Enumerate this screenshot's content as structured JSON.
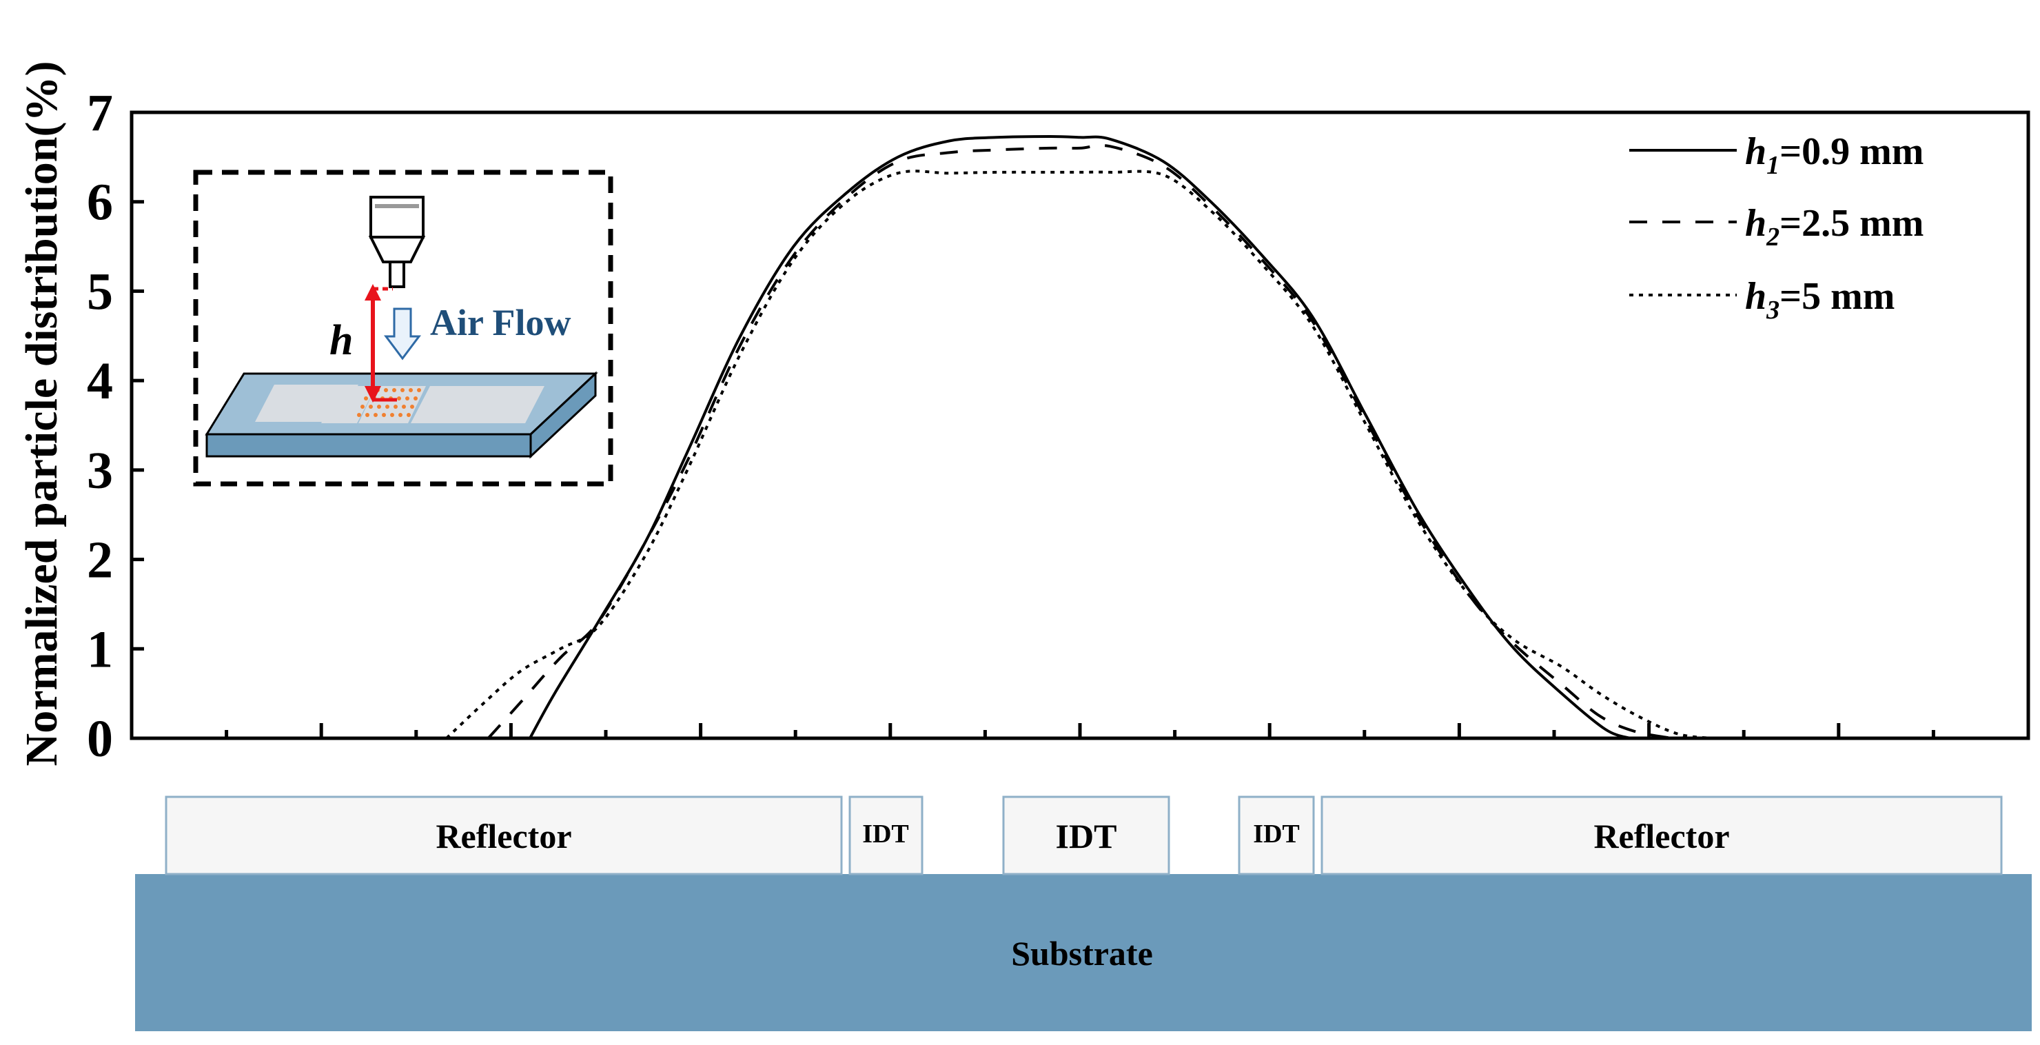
{
  "chart_data": {
    "type": "line",
    "title": "",
    "xlabel": "",
    "ylabel": "Normalized particle distribution(%)",
    "ylim": [
      0,
      7
    ],
    "yticks": [
      "0",
      "1",
      "2",
      "3",
      "4",
      "5",
      "6",
      "7"
    ],
    "xlim": [
      0,
      100
    ],
    "x_tick_labels_shown": false,
    "grid": false,
    "legend_position": "top-right",
    "series": [
      {
        "name_prefix": "h",
        "name_sub": "1",
        "name_suffix": "=0.9 mm",
        "line_style": "solid",
        "x": [
          21.0,
          22.3,
          24.6,
          27.1,
          29.3,
          32.1,
          34.9,
          37.7,
          40.4,
          43.1,
          45.6,
          48.4,
          50.0,
          51.6,
          54.4,
          56.9,
          59.6,
          62.3,
          65.1,
          67.9,
          70.7,
          72.9,
          75.4,
          77.7,
          79.0
        ],
        "y": [
          0.0,
          0.5,
          1.3,
          2.2,
          3.2,
          4.5,
          5.5,
          6.1,
          6.5,
          6.68,
          6.72,
          6.73,
          6.72,
          6.7,
          6.45,
          6.0,
          5.4,
          4.7,
          3.6,
          2.5,
          1.6,
          1.0,
          0.5,
          0.1,
          0.0
        ]
      },
      {
        "name_prefix": "h",
        "name_sub": "2",
        "name_suffix": "=2.5 mm",
        "line_style": "dashed",
        "x": [
          18.8,
          20.5,
          22.6,
          24.6,
          27.1,
          29.3,
          32.1,
          34.9,
          37.7,
          40.4,
          43.1,
          45.6,
          48.4,
          50.0,
          51.6,
          54.4,
          56.9,
          59.6,
          62.3,
          65.1,
          67.9,
          70.7,
          72.9,
          75.4,
          77.4,
          79.2,
          81.2
        ],
        "y": [
          0.0,
          0.4,
          0.9,
          1.3,
          2.2,
          3.1,
          4.4,
          5.4,
          6.05,
          6.45,
          6.55,
          6.58,
          6.6,
          6.6,
          6.62,
          6.4,
          5.95,
          5.35,
          4.65,
          3.55,
          2.45,
          1.55,
          1.05,
          0.6,
          0.25,
          0.08,
          0.0
        ]
      },
      {
        "name_prefix": "h",
        "name_sub": "3",
        "name_suffix": "=5 mm",
        "line_style": "dotted",
        "x": [
          16.6,
          18.6,
          20.5,
          22.6,
          24.6,
          27.1,
          29.3,
          32.1,
          34.9,
          37.7,
          40.4,
          43.1,
          45.6,
          48.4,
          50.0,
          51.6,
          54.4,
          56.9,
          59.6,
          62.3,
          65.1,
          67.9,
          70.7,
          72.9,
          75.4,
          77.4,
          79.4,
          81.5,
          83.3
        ],
        "y": [
          0.0,
          0.4,
          0.75,
          1.0,
          1.25,
          2.05,
          3.0,
          4.3,
          5.35,
          6.0,
          6.32,
          6.32,
          6.33,
          6.33,
          6.33,
          6.33,
          6.3,
          5.9,
          5.3,
          4.6,
          3.5,
          2.4,
          1.55,
          1.1,
          0.8,
          0.5,
          0.25,
          0.05,
          0.0
        ]
      }
    ]
  },
  "device_diagram": {
    "substrate_label": "Substrate",
    "electrodes": [
      {
        "label": "Reflector",
        "size": "large"
      },
      {
        "label": "IDT",
        "size": "small"
      },
      {
        "label": "IDT",
        "size": "large"
      },
      {
        "label": "IDT",
        "size": "small"
      },
      {
        "label": "Reflector",
        "size": "large"
      }
    ],
    "colors": {
      "substrate": "#6b9aba",
      "electrode_fill": "#f6f6f6",
      "electrode_border": "#8fb0c8"
    }
  },
  "inset": {
    "height_label": "h",
    "airflow_label": "Air Flow",
    "colors": {
      "airflow_text": "#1f4e79",
      "height_arrow": "#e8141c",
      "particles": "#f08030",
      "plate_top": "#9ebfd6",
      "plate_side": "#6b9aba"
    }
  }
}
